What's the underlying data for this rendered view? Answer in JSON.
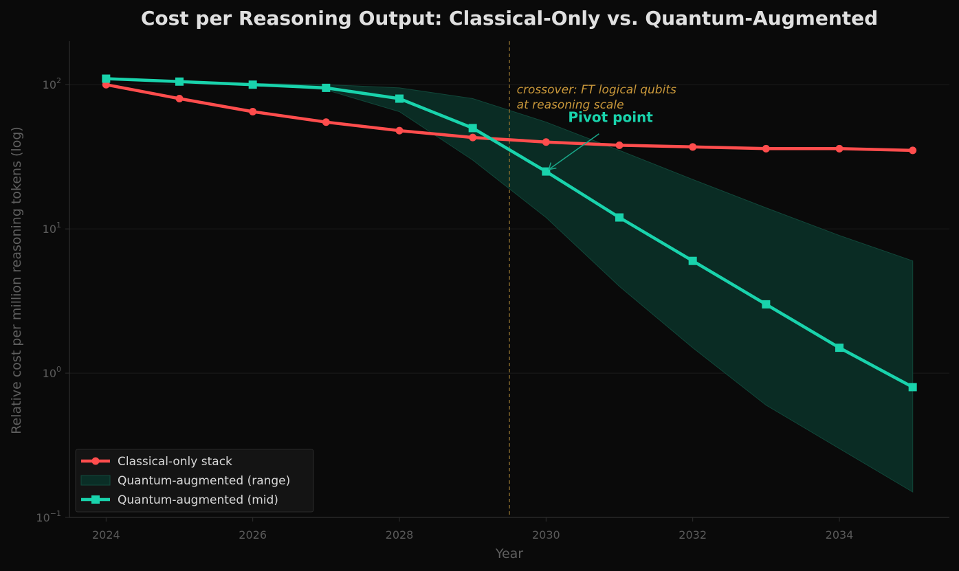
{
  "chart_data": {
    "type": "line",
    "title": "Cost per Reasoning Output: Classical-Only vs. Quantum-Augmented",
    "xlabel": "Year",
    "ylabel": "Relative cost per million reasoning tokens (log)",
    "yscale": "log",
    "xlim": [
      2023.5,
      2035.5
    ],
    "ylim": [
      0.1,
      200
    ],
    "x": [
      2024,
      2025,
      2026,
      2027,
      2028,
      2029,
      2030,
      2031,
      2032,
      2033,
      2034,
      2035
    ],
    "x_ticks": [
      2024,
      2026,
      2028,
      2030,
      2032,
      2034
    ],
    "y_ticks": [
      {
        "value": 0.1,
        "base": "10",
        "exp": "−1"
      },
      {
        "value": 1,
        "base": "10",
        "exp": "0"
      },
      {
        "value": 10,
        "base": "10",
        "exp": "1"
      },
      {
        "value": 100,
        "base": "10",
        "exp": "2"
      }
    ],
    "series": [
      {
        "name": "Classical-only stack",
        "color": "#ff4d4d",
        "marker": "circle",
        "values": [
          100,
          80,
          65,
          55,
          48,
          43,
          40,
          38,
          37,
          36,
          36,
          35
        ]
      },
      {
        "name": "Quantum-augmented (mid)",
        "color": "#19d3ac",
        "marker": "square",
        "values": [
          110,
          105,
          100,
          95,
          80,
          50,
          25,
          12,
          6,
          3,
          1.5,
          0.8
        ]
      }
    ],
    "band": {
      "name": "Quantum-augmented (range)",
      "color": "#0a2e26",
      "upper": [
        110,
        105,
        102,
        100,
        95,
        80,
        55,
        35,
        22,
        14,
        9,
        6
      ],
      "lower": [
        110,
        105,
        100,
        92,
        65,
        30,
        12,
        4,
        1.5,
        0.6,
        0.3,
        0.15
      ]
    },
    "vline": {
      "x": 2029.5,
      "color": "#8a6d2e"
    },
    "annotations": [
      {
        "id": "crossover",
        "lines": [
          "crossover: FT logical qubits",
          "at reasoning scale"
        ],
        "x": 2029.6,
        "y": 95
      },
      {
        "id": "pivot",
        "text": "Pivot point",
        "x": 2030.3,
        "y": 55,
        "arrow_to": {
          "x": 2030,
          "y": 25
        }
      }
    ],
    "legend": {
      "position": "lower-left",
      "entries": [
        "Classical-only stack",
        "Quantum-augmented (range)",
        "Quantum-augmented (mid)"
      ]
    },
    "grid": true,
    "colors": {
      "background": "#0a0a0a",
      "grid": "#1a1a1a",
      "axis": "#2e2e2e",
      "title": "#e0e0e0"
    }
  }
}
